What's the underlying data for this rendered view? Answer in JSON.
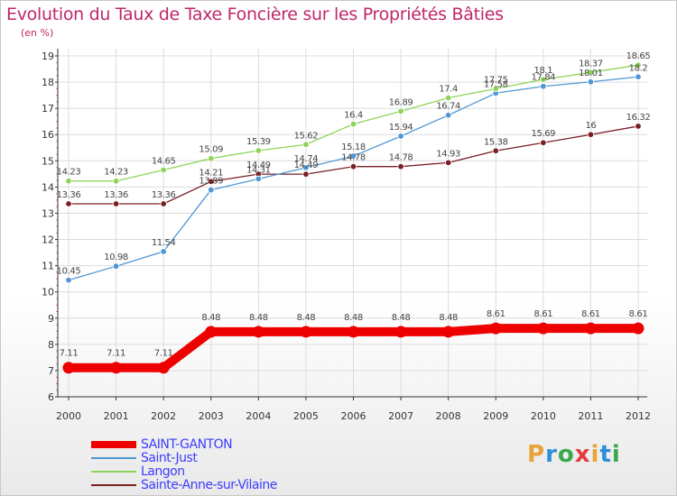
{
  "title": "Evolution du Taux de Taxe Foncière sur les Propriétés Bâties",
  "unit_label": "(en %)",
  "logo": "Proxiti",
  "logo_colors": [
    "#e8a33a",
    "#2f8fd6",
    "#3aa94b",
    "#e23d3d",
    "#e8a33a",
    "#2f8fd6",
    "#3aa94b"
  ],
  "colors": {
    "title": "#c0266a",
    "legend_text": "#3c3cff",
    "grid": "#dcdcdc",
    "axis": "#333333"
  },
  "chart_data": {
    "type": "line",
    "title": "Evolution du Taux de Taxe Foncière sur les Propriétés Bâties",
    "xlabel": "",
    "ylabel": "(en %)",
    "x": [
      "2000",
      "2001",
      "2002",
      "2003",
      "2004",
      "2005",
      "2006",
      "2007",
      "2008",
      "2009",
      "2010",
      "2011",
      "2012"
    ],
    "ylim": [
      6,
      19
    ],
    "yticks": [
      6,
      7,
      8,
      9,
      10,
      11,
      12,
      13,
      14,
      15,
      16,
      17,
      18,
      19
    ],
    "grid": true,
    "legend": "bottom-left",
    "series": [
      {
        "name": "Sainte-Anne-sur-Vilaine",
        "color": "#7a1f24",
        "values": [
          13.36,
          13.36,
          13.36,
          14.21,
          14.49,
          14.49,
          14.78,
          14.78,
          14.93,
          15.38,
          15.69,
          16,
          16.32
        ],
        "labels": [
          "13.36",
          "13.36",
          "13.36",
          "14.21",
          "14.49",
          "14.49",
          "14.78",
          "14.78",
          "14.93",
          "15.38",
          "15.69",
          "16",
          "16.32"
        ]
      },
      {
        "name": "Saint-Just",
        "color": "#4f97d4",
        "values": [
          10.45,
          10.98,
          11.54,
          13.89,
          14.31,
          14.74,
          15.18,
          15.94,
          16.74,
          17.58,
          17.84,
          18.01,
          18.2
        ],
        "labels": [
          "10.45",
          "10.98",
          "11.54",
          "13.89",
          "14.31",
          "14.74",
          "15.18",
          "15.94",
          "16.74",
          "17.58",
          "17.84",
          "18.01",
          "18.2"
        ]
      },
      {
        "name": "Langon",
        "color": "#8fd45a",
        "values": [
          14.23,
          14.23,
          14.65,
          15.09,
          15.39,
          15.62,
          16.4,
          16.89,
          17.4,
          17.75,
          18.1,
          18.37,
          18.65
        ],
        "labels": [
          "14.23",
          "14.23",
          "14.65",
          "15.09",
          "15.39",
          "15.62",
          "16.4",
          "16.89",
          "17.4",
          "17.75",
          "18.1",
          "18.37",
          "18.65"
        ]
      },
      {
        "name": "SAINT-GANTON",
        "color": "#ee0000",
        "values": [
          7.11,
          7.11,
          7.11,
          8.48,
          8.48,
          8.48,
          8.48,
          8.48,
          8.48,
          8.61,
          8.61,
          8.61,
          8.61
        ],
        "labels": [
          "7.11",
          "7.11",
          "7.11",
          "8.48",
          "8.48",
          "8.48",
          "8.48",
          "8.48",
          "8.48",
          "8.61",
          "8.61",
          "8.61",
          "8.61"
        ]
      }
    ]
  },
  "legend_items": [
    {
      "label": "SAINT-GANTON",
      "color": "#ee0000"
    },
    {
      "label": "Saint-Just",
      "color": "#4f97d4"
    },
    {
      "label": "Langon",
      "color": "#8fd45a"
    },
    {
      "label": "Sainte-Anne-sur-Vilaine",
      "color": "#7a1f24"
    }
  ]
}
